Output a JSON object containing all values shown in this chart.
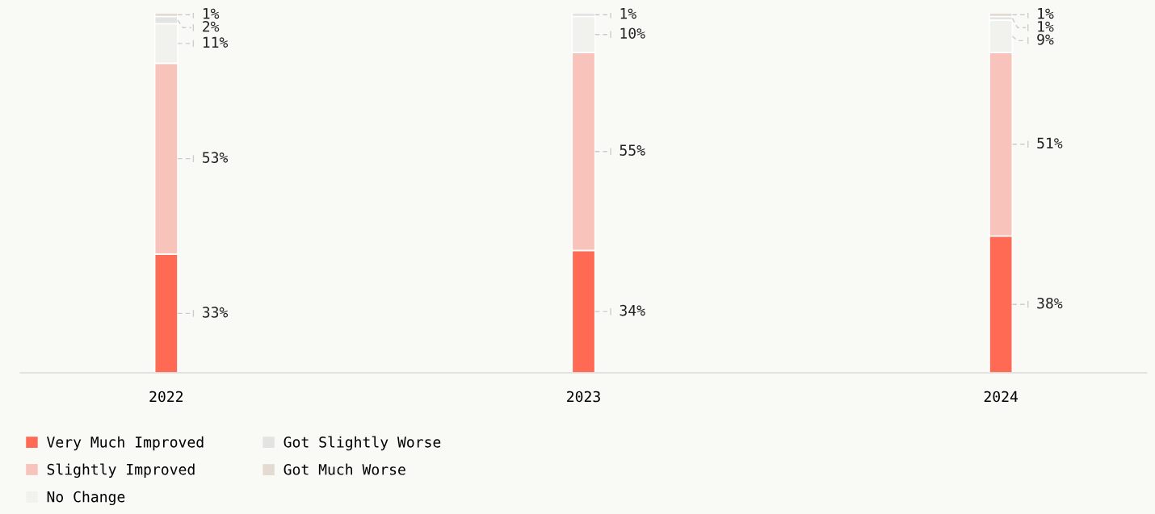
{
  "chart_data": {
    "type": "bar",
    "stacked": true,
    "categories": [
      "2022",
      "2023",
      "2024"
    ],
    "series": [
      {
        "name": "Very Much Improved",
        "color": "#ff6a55",
        "values": [
          33,
          34,
          38
        ],
        "value_labels": [
          "33%",
          "34%",
          "38%"
        ]
      },
      {
        "name": "Slightly Improved",
        "color": "#f8c3bb",
        "values": [
          53,
          55,
          51
        ],
        "value_labels": [
          "53%",
          "55%",
          "51%"
        ]
      },
      {
        "name": "No Change",
        "color": "#f1f1ed",
        "values": [
          11,
          10,
          9
        ],
        "value_labels": [
          "11%",
          "10%",
          "9%"
        ]
      },
      {
        "name": "Got Slightly Worse",
        "color": "#e3e3e1",
        "values": [
          2,
          1,
          1
        ],
        "value_labels": [
          "2%",
          "1%",
          "1%"
        ]
      },
      {
        "name": "Got Much Worse",
        "color": "#e3dbd2",
        "values": [
          1,
          null,
          1
        ],
        "value_labels": [
          "1%",
          null,
          "1%"
        ]
      }
    ],
    "grid": false,
    "legend": "bottom"
  }
}
